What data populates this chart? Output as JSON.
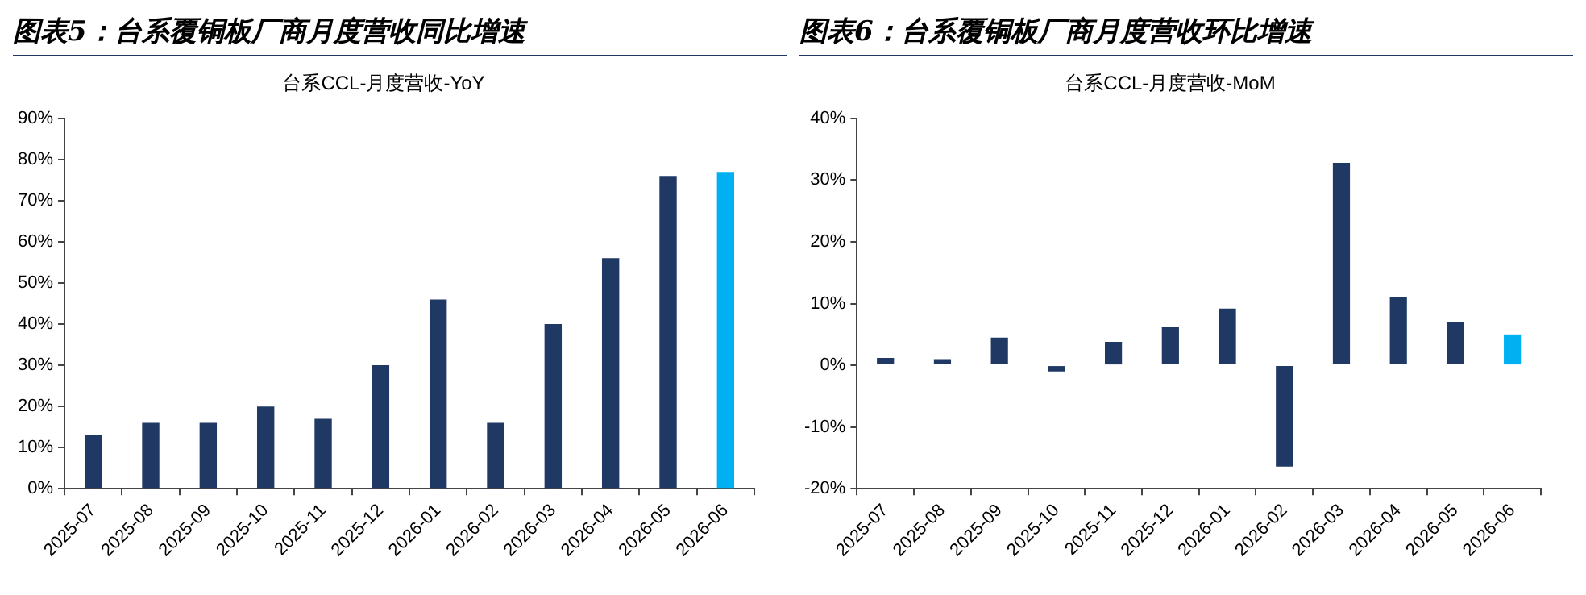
{
  "chart_data": [
    {
      "type": "bar",
      "title": "图表5：台系覆铜板厂商月度营收同比增速",
      "subtitle": "台系CCL-月度营收-YoY",
      "categories": [
        "2025-07",
        "2025-08",
        "2025-09",
        "2025-10",
        "2025-11",
        "2025-12",
        "2026-01",
        "2026-02",
        "2026-03",
        "2026-04",
        "2026-05",
        "2026-06"
      ],
      "values": [
        13,
        16,
        16,
        20,
        17,
        30,
        46,
        16,
        40,
        56,
        76,
        77
      ],
      "colors": [
        "#1f3864",
        "#1f3864",
        "#1f3864",
        "#1f3864",
        "#1f3864",
        "#1f3864",
        "#1f3864",
        "#1f3864",
        "#1f3864",
        "#1f3864",
        "#1f3864",
        "#00b0f0"
      ],
      "ylim": [
        0,
        90
      ],
      "yticks": [
        {
          "value": 0,
          "label": "0%"
        },
        {
          "value": 10,
          "label": "10%"
        },
        {
          "value": 20,
          "label": "20%"
        },
        {
          "value": 30,
          "label": "30%"
        },
        {
          "value": 40,
          "label": "40%"
        },
        {
          "value": 50,
          "label": "50%"
        },
        {
          "value": 60,
          "label": "60%"
        },
        {
          "value": 70,
          "label": "70%"
        },
        {
          "value": 80,
          "label": "80%"
        },
        {
          "value": 90,
          "label": "90%"
        }
      ]
    },
    {
      "type": "bar",
      "title": "图表6：台系覆铜板厂商月度营收环比增速",
      "subtitle": "台系CCL-月度营收-MoM",
      "categories": [
        "2025-07",
        "2025-08",
        "2025-09",
        "2025-10",
        "2025-11",
        "2025-12",
        "2026-01",
        "2026-02",
        "2026-03",
        "2026-04",
        "2026-05",
        "2026-06"
      ],
      "values": [
        1.2,
        1.0,
        4.5,
        -1.0,
        3.8,
        6.2,
        9.2,
        -16.4,
        32.8,
        11.0,
        7.0,
        5.0
      ],
      "colors": [
        "#1f3864",
        "#1f3864",
        "#1f3864",
        "#1f3864",
        "#1f3864",
        "#1f3864",
        "#1f3864",
        "#1f3864",
        "#1f3864",
        "#1f3864",
        "#1f3864",
        "#00b0f0"
      ],
      "ylim": [
        -20,
        40
      ],
      "yticks": [
        {
          "value": -20,
          "label": "-20%"
        },
        {
          "value": -10,
          "label": "-10%"
        },
        {
          "value": 0,
          "label": "0%"
        },
        {
          "value": 10,
          "label": "10%"
        },
        {
          "value": 20,
          "label": "20%"
        },
        {
          "value": 30,
          "label": "30%"
        },
        {
          "value": 40,
          "label": "40%"
        }
      ]
    }
  ]
}
